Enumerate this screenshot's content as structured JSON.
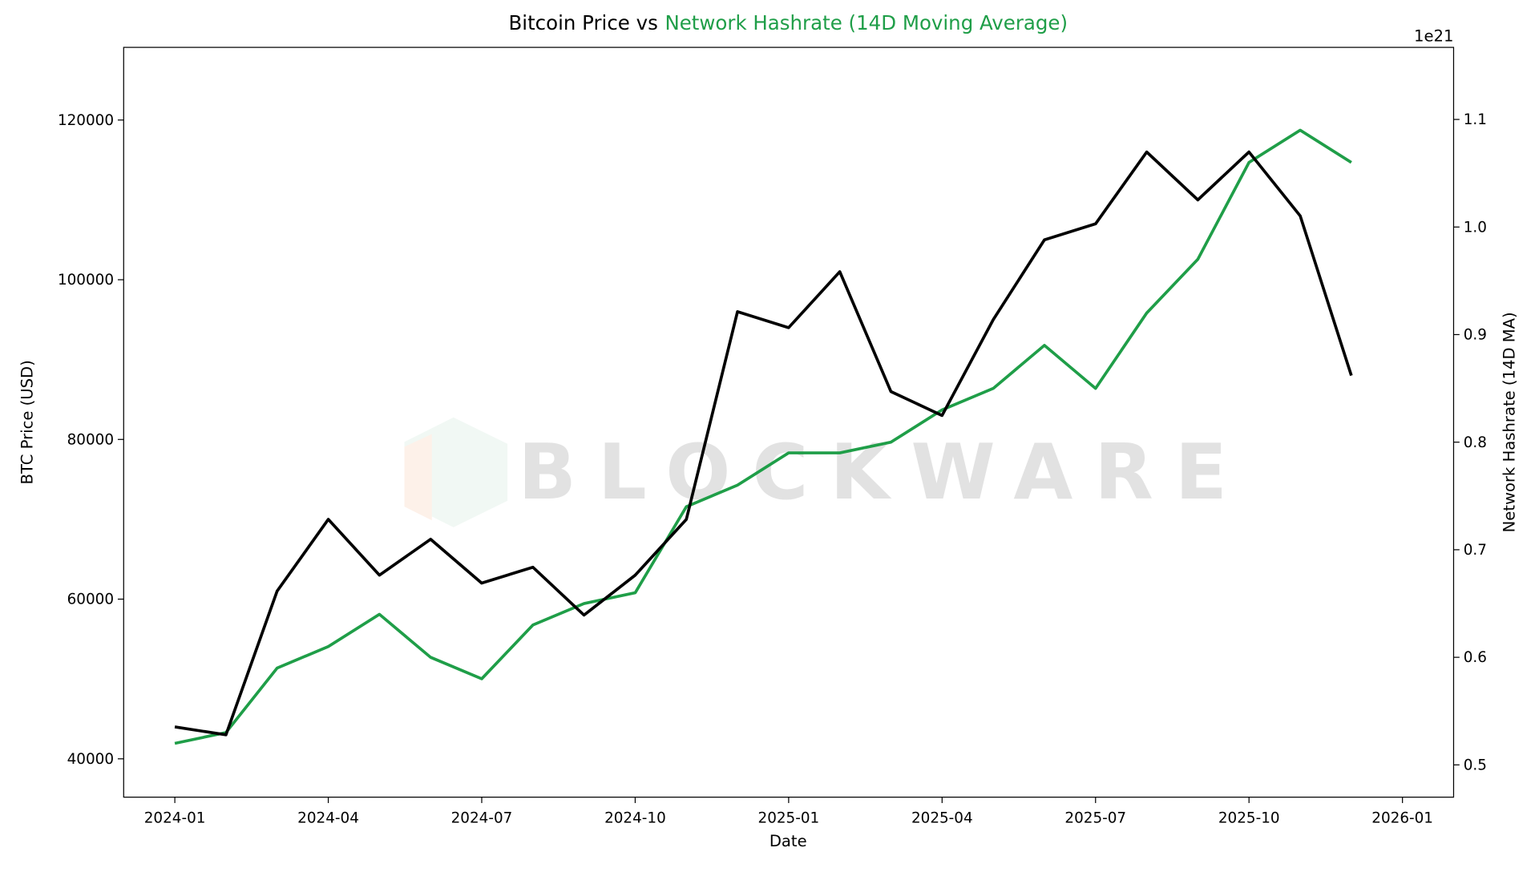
{
  "chart_data": {
    "type": "line",
    "title_parts": [
      "Bitcoin Price vs",
      "Network Hashrate (14D Moving Average)"
    ],
    "title_colors": [
      "#000000",
      "#1f9e48"
    ],
    "xlabel": "Date",
    "ylabel": "BTC Price (USD)",
    "y2label": "Network Hashrate (14D MA)",
    "y2_offset": "1e21",
    "watermark": "BLOCKWARE",
    "x": [
      "2024-01",
      "2024-02",
      "2024-03",
      "2024-04",
      "2024-05",
      "2024-06",
      "2024-07",
      "2024-08",
      "2024-09",
      "2024-10",
      "2024-11",
      "2024-12",
      "2025-01",
      "2025-02",
      "2025-03",
      "2025-04",
      "2025-05",
      "2025-06",
      "2025-07",
      "2025-08",
      "2025-09",
      "2025-10",
      "2025-11",
      "2025-12"
    ],
    "series": [
      {
        "name": "BTC Price",
        "color": "#000000",
        "values": [
          44000,
          43000,
          61000,
          70000,
          63000,
          67500,
          62000,
          64000,
          58000,
          63000,
          70000,
          96000,
          94000,
          101000,
          86000,
          83000,
          95000,
          105000,
          107000,
          116000,
          110000,
          116000,
          108000,
          88000
        ]
      },
      {
        "name": "Network Hashrate",
        "color": "#1f9e48",
        "axis": "y2",
        "values": [
          0.52,
          0.53,
          0.59,
          0.61,
          0.64,
          0.6,
          0.58,
          0.63,
          0.65,
          0.66,
          0.74,
          0.76,
          0.79,
          0.79,
          0.8,
          0.83,
          0.85,
          0.89,
          0.85,
          0.92,
          0.97,
          1.06,
          1.09,
          1.06
        ]
      }
    ],
    "xlim": [
      "2023-12",
      "2026-02"
    ],
    "xticks": [
      "2024-01",
      "2024-04",
      "2024-07",
      "2024-10",
      "2025-01",
      "2025-04",
      "2025-07",
      "2025-10",
      "2026-01"
    ],
    "ylim": [
      35200,
      129100
    ],
    "yticks": [
      40000,
      60000,
      80000,
      100000,
      120000
    ],
    "y2lim": [
      0.47,
      1.167
    ],
    "y2ticks": [
      0.5,
      0.6,
      0.7,
      0.8,
      0.9,
      {
        "value": 1,
        "label": "1.0"
      },
      1.1
    ],
    "grid": false
  }
}
